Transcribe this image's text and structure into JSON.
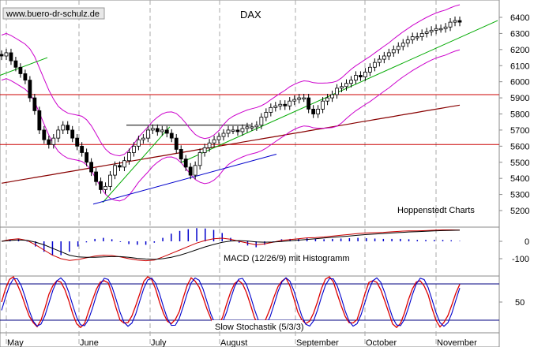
{
  "watermark": "www.buero-dr-schulz.de",
  "chart_data": {
    "type": "candlestick",
    "title": "DAX",
    "source": "Hoppenstedt Charts",
    "y_ticks": [
      "6400",
      "6300",
      "6200",
      "6100",
      "6000",
      "5900",
      "5800",
      "5700",
      "5600",
      "5500",
      "5400",
      "5300",
      "5200"
    ],
    "ylim": [
      5140,
      6460
    ],
    "months": [
      "May",
      "June",
      "July",
      "August",
      "September",
      "October",
      "November"
    ],
    "support_resistance": [
      5920,
      5610
    ],
    "trading_range": {
      "from_month": "July",
      "to_month": "August",
      "level": 5730
    },
    "close_series": [
      6160,
      6180,
      6130,
      6090,
      6050,
      6010,
      5900,
      5820,
      5700,
      5640,
      5610,
      5650,
      5700,
      5730,
      5700,
      5650,
      5600,
      5560,
      5500,
      5440,
      5380,
      5330,
      5350,
      5420,
      5480,
      5470,
      5510,
      5560,
      5600,
      5640,
      5650,
      5700,
      5710,
      5690,
      5700,
      5680,
      5650,
      5580,
      5520,
      5470,
      5420,
      5480,
      5560,
      5590,
      5620,
      5640,
      5660,
      5680,
      5700,
      5700,
      5690,
      5710,
      5720,
      5720,
      5730,
      5780,
      5810,
      5840,
      5850,
      5860,
      5850,
      5880,
      5890,
      5900,
      5900,
      5830,
      5800,
      5830,
      5880,
      5900,
      5920,
      5960,
      5970,
      5990,
      6010,
      6040,
      6030,
      6060,
      6090,
      6120,
      6140,
      6160,
      6180,
      6200,
      6220,
      6240,
      6260,
      6280,
      6280,
      6300,
      6310,
      6320,
      6330,
      6330,
      6340,
      6370,
      6380,
      6370
    ],
    "macd_panel": {
      "label": "MACD (12/26/9) mit Histogramm",
      "y_ticks": [
        "0",
        "-100"
      ],
      "macd": [
        0,
        10,
        15,
        5,
        -20,
        -50,
        -80,
        -100,
        -110,
        -105,
        -95,
        -85,
        -80,
        -82,
        -90,
        -100,
        -108,
        -112,
        -108,
        -90,
        -70,
        -50,
        -30,
        -10,
        5,
        15,
        18,
        12,
        0,
        -10,
        -20,
        -15,
        -5,
        5,
        10,
        15,
        20,
        22,
        25,
        30,
        35,
        40,
        45,
        48,
        50,
        52,
        55,
        58,
        60,
        60,
        62,
        64,
        66,
        66,
        65
      ],
      "signal": [
        0,
        5,
        8,
        6,
        -5,
        -20,
        -40,
        -60,
        -80,
        -90,
        -92,
        -92,
        -90,
        -88,
        -88,
        -92,
        -98,
        -102,
        -104,
        -100,
        -92,
        -80,
        -65,
        -48,
        -32,
        -18,
        -6,
        2,
        4,
        2,
        -3,
        -5,
        -4,
        -1,
        3,
        7,
        11,
        15,
        19,
        23,
        27,
        31,
        35,
        39,
        42,
        45,
        48,
        51,
        54,
        56,
        58,
        60,
        62,
        63,
        64
      ]
    },
    "stochastic_panel": {
      "label": "Slow Stochastik (5/3/3)",
      "y_ticks": [
        "50"
      ],
      "bands": [
        80,
        20
      ]
    }
  },
  "colors": {
    "candle_up": "#ffffff",
    "candle_down": "#000000",
    "bollinger": "#cc00cc",
    "resistance": "#cc0000",
    "trend_green": "#00aa00",
    "trend_blue": "#0000cc",
    "ma_long": "#880000",
    "stoch_band": "#000080"
  }
}
